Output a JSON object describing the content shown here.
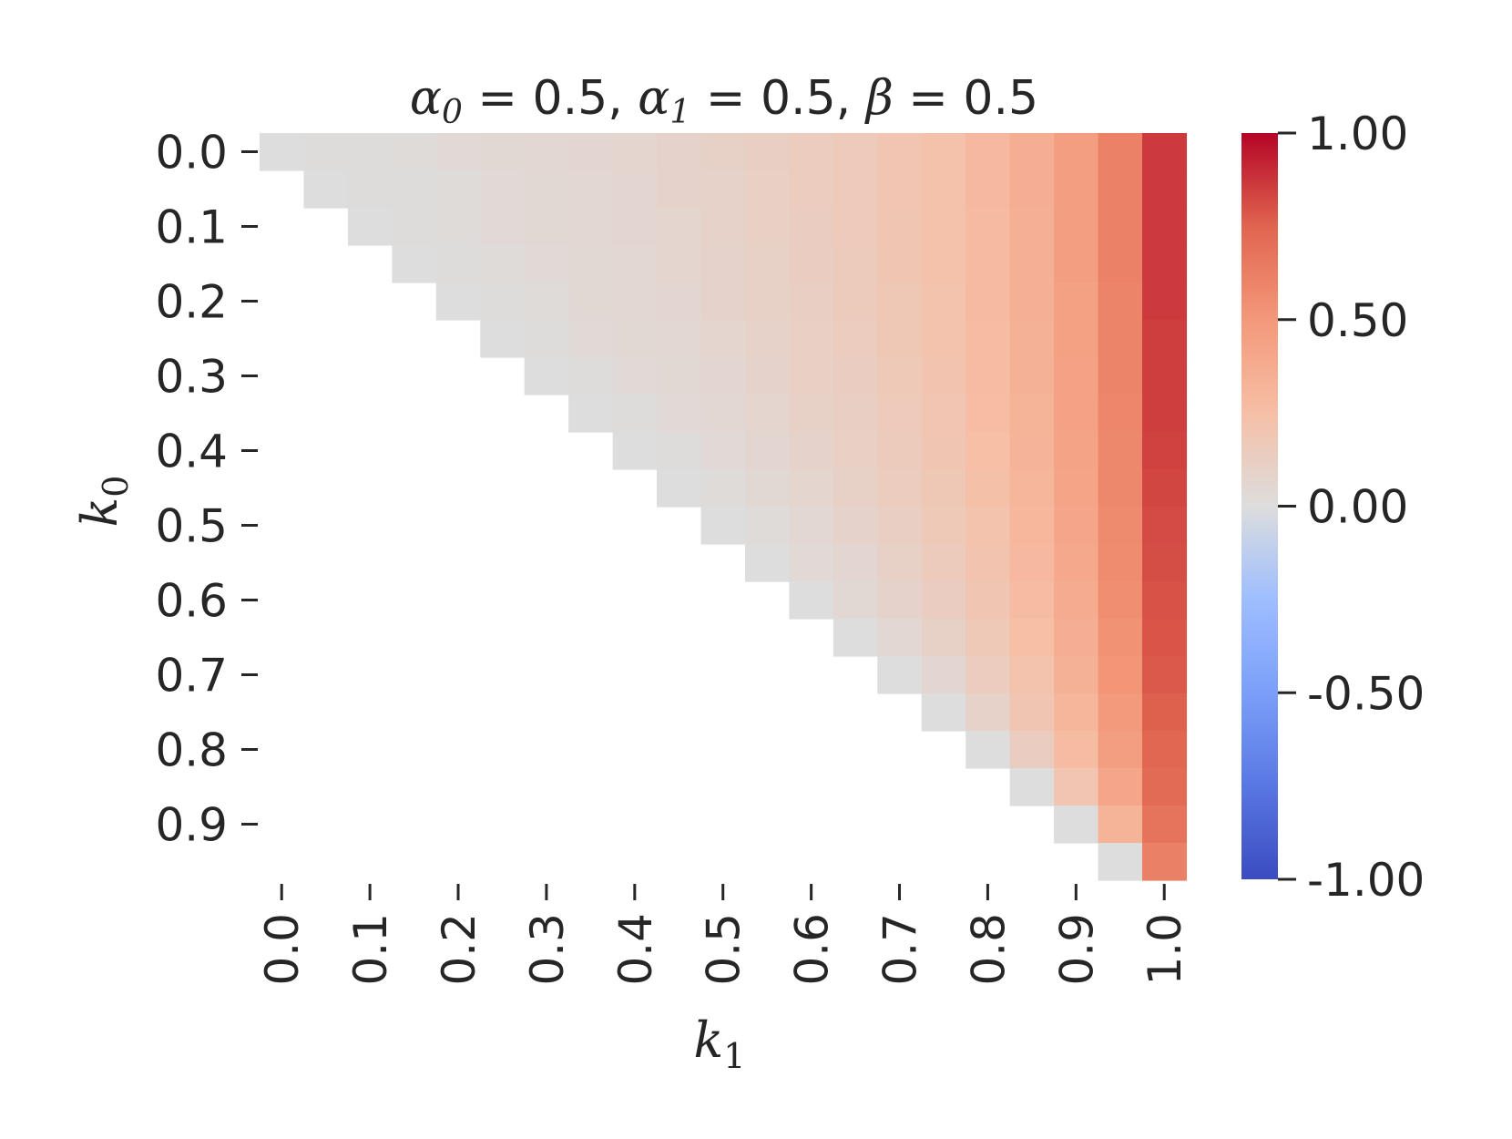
{
  "chart_data": {
    "type": "heatmap",
    "title": "α0 = 0.5, α1 = 0.5, β = 0.5",
    "title_parts": {
      "alpha0_symbol": "α",
      "alpha0_sub": "0",
      "alpha0_value": " = 0.5, ",
      "alpha1_symbol": "α",
      "alpha1_sub": "1",
      "alpha1_value": " = 0.5, ",
      "beta_symbol": "β",
      "beta_value": " = 0.5"
    },
    "xlabel": "k1",
    "xlabel_parts": {
      "symbol": "k",
      "sub": "1"
    },
    "ylabel": "k0",
    "ylabel_parts": {
      "symbol": "k",
      "sub": "0"
    },
    "x_ticks": [
      "0.0",
      "0.1",
      "0.2",
      "0.3",
      "0.4",
      "0.5",
      "0.6",
      "0.7",
      "0.8",
      "0.9",
      "1.0"
    ],
    "y_ticks": [
      "0.0",
      "0.1",
      "0.2",
      "0.3",
      "0.4",
      "0.5",
      "0.6",
      "0.7",
      "0.8",
      "0.9"
    ],
    "n_cols": 21,
    "n_rows": 20,
    "colormap": "coolwarm",
    "colorbar": {
      "range": [
        -1.0,
        1.0
      ],
      "ticks": [
        "1.00",
        "0.50",
        "0.00",
        "-0.50",
        "-1.00"
      ]
    },
    "colors": {
      "low": "#3b4cc0",
      "mid": "#dddddd",
      "high": "#b40426"
    },
    "values": [
      [
        0.0,
        0.01,
        0.01,
        0.02,
        0.03,
        0.04,
        0.05,
        0.06,
        0.07,
        0.08,
        0.1,
        0.12,
        0.14,
        0.16,
        0.2,
        0.23,
        0.29,
        0.36,
        0.46,
        0.61,
        0.86
      ],
      [
        null,
        0.0,
        0.01,
        0.01,
        0.02,
        0.03,
        0.04,
        0.05,
        0.06,
        0.08,
        0.09,
        0.11,
        0.14,
        0.16,
        0.2,
        0.23,
        0.29,
        0.36,
        0.46,
        0.61,
        0.86
      ],
      [
        null,
        null,
        0.0,
        0.01,
        0.02,
        0.03,
        0.04,
        0.05,
        0.06,
        0.07,
        0.09,
        0.11,
        0.13,
        0.16,
        0.19,
        0.23,
        0.28,
        0.35,
        0.46,
        0.61,
        0.86
      ],
      [
        null,
        null,
        null,
        0.0,
        0.01,
        0.02,
        0.03,
        0.04,
        0.05,
        0.07,
        0.08,
        0.1,
        0.13,
        0.15,
        0.19,
        0.23,
        0.28,
        0.35,
        0.46,
        0.61,
        0.86
      ],
      [
        null,
        null,
        null,
        null,
        0.0,
        0.01,
        0.02,
        0.04,
        0.05,
        0.06,
        0.08,
        0.1,
        0.12,
        0.15,
        0.18,
        0.22,
        0.28,
        0.35,
        0.45,
        0.6,
        0.86
      ],
      [
        null,
        null,
        null,
        null,
        null,
        0.0,
        0.01,
        0.03,
        0.04,
        0.05,
        0.07,
        0.09,
        0.11,
        0.14,
        0.18,
        0.22,
        0.27,
        0.34,
        0.45,
        0.6,
        0.85
      ],
      [
        null,
        null,
        null,
        null,
        null,
        null,
        0.0,
        0.01,
        0.03,
        0.04,
        0.06,
        0.08,
        0.11,
        0.13,
        0.17,
        0.21,
        0.27,
        0.34,
        0.44,
        0.6,
        0.85
      ],
      [
        null,
        null,
        null,
        null,
        null,
        null,
        null,
        0.0,
        0.01,
        0.03,
        0.05,
        0.07,
        0.1,
        0.12,
        0.16,
        0.2,
        0.26,
        0.33,
        0.44,
        0.59,
        0.85
      ],
      [
        null,
        null,
        null,
        null,
        null,
        null,
        null,
        null,
        0.0,
        0.01,
        0.03,
        0.06,
        0.08,
        0.11,
        0.15,
        0.19,
        0.25,
        0.32,
        0.43,
        0.58,
        0.84
      ],
      [
        null,
        null,
        null,
        null,
        null,
        null,
        null,
        null,
        null,
        0.0,
        0.02,
        0.04,
        0.07,
        0.1,
        0.14,
        0.18,
        0.24,
        0.31,
        0.42,
        0.58,
        0.83
      ],
      [
        null,
        null,
        null,
        null,
        null,
        null,
        null,
        null,
        null,
        null,
        0.0,
        0.02,
        0.05,
        0.08,
        0.12,
        0.17,
        0.22,
        0.3,
        0.41,
        0.57,
        0.82
      ],
      [
        null,
        null,
        null,
        null,
        null,
        null,
        null,
        null,
        null,
        null,
        null,
        0.0,
        0.03,
        0.06,
        0.1,
        0.15,
        0.21,
        0.29,
        0.4,
        0.56,
        0.81
      ],
      [
        null,
        null,
        null,
        null,
        null,
        null,
        null,
        null,
        null,
        null,
        null,
        null,
        0.0,
        0.04,
        0.08,
        0.13,
        0.19,
        0.27,
        0.38,
        0.55,
        0.8
      ],
      [
        null,
        null,
        null,
        null,
        null,
        null,
        null,
        null,
        null,
        null,
        null,
        null,
        null,
        0.0,
        0.05,
        0.1,
        0.17,
        0.25,
        0.36,
        0.53,
        0.79
      ],
      [
        null,
        null,
        null,
        null,
        null,
        null,
        null,
        null,
        null,
        null,
        null,
        null,
        null,
        null,
        0.0,
        0.06,
        0.14,
        0.22,
        0.34,
        0.51,
        0.78
      ],
      [
        null,
        null,
        null,
        null,
        null,
        null,
        null,
        null,
        null,
        null,
        null,
        null,
        null,
        null,
        null,
        0.0,
        0.09,
        0.19,
        0.31,
        0.49,
        0.76
      ],
      [
        null,
        null,
        null,
        null,
        null,
        null,
        null,
        null,
        null,
        null,
        null,
        null,
        null,
        null,
        null,
        null,
        0.0,
        0.13,
        0.27,
        0.46,
        0.74
      ],
      [
        null,
        null,
        null,
        null,
        null,
        null,
        null,
        null,
        null,
        null,
        null,
        null,
        null,
        null,
        null,
        null,
        null,
        0.0,
        0.2,
        0.41,
        0.72
      ],
      [
        null,
        null,
        null,
        null,
        null,
        null,
        null,
        null,
        null,
        null,
        null,
        null,
        null,
        null,
        null,
        null,
        null,
        null,
        0.0,
        0.33,
        0.68
      ],
      [
        null,
        null,
        null,
        null,
        null,
        null,
        null,
        null,
        null,
        null,
        null,
        null,
        null,
        null,
        null,
        null,
        null,
        null,
        null,
        0.0,
        0.62
      ]
    ]
  }
}
